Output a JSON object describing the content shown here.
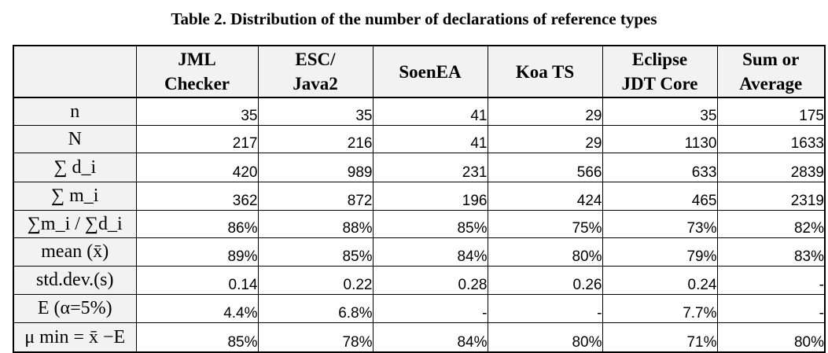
{
  "title": "Table 2. Distribution of the number of declarations of reference types",
  "columns": [
    {
      "line1": "JML",
      "line2": "Checker"
    },
    {
      "line1": "ESC/",
      "line2": "Java2"
    },
    {
      "line1": "SoenEA",
      "line2": ""
    },
    {
      "line1": "Koa TS",
      "line2": ""
    },
    {
      "line1": "Eclipse",
      "line2": "JDT Core"
    },
    {
      "line1": "Sum or",
      "line2": "Average"
    }
  ],
  "rows": [
    {
      "label": "n",
      "values": [
        "35",
        "35",
        "41",
        "29",
        "35",
        "175"
      ]
    },
    {
      "label": "N",
      "values": [
        "217",
        "216",
        "41",
        "29",
        "1130",
        "1633"
      ]
    },
    {
      "label": "∑ d_i",
      "values": [
        "420",
        "989",
        "231",
        "566",
        "633",
        "2839"
      ]
    },
    {
      "label": "∑ m_i",
      "values": [
        "362",
        "872",
        "196",
        "424",
        "465",
        "2319"
      ]
    },
    {
      "label": "∑m_i / ∑d_i",
      "values": [
        "86%",
        "88%",
        "85%",
        "75%",
        "73%",
        "82%"
      ]
    },
    {
      "label": "mean (x̄)",
      "values": [
        "89%",
        "85%",
        "84%",
        "80%",
        "79%",
        "83%"
      ]
    },
    {
      "label": "std.dev.(s)",
      "values": [
        "0.14",
        "0.22",
        "0.28",
        "0.26",
        "0.24",
        "-"
      ]
    },
    {
      "label": "E (α=5%)",
      "values": [
        "4.4%",
        "6.8%",
        "-",
        "-",
        "7.7%",
        "-"
      ]
    },
    {
      "label": "μ min = x̄ −E",
      "values": [
        "85%",
        "78%",
        "84%",
        "80%",
        "71%",
        "80%"
      ]
    }
  ]
}
